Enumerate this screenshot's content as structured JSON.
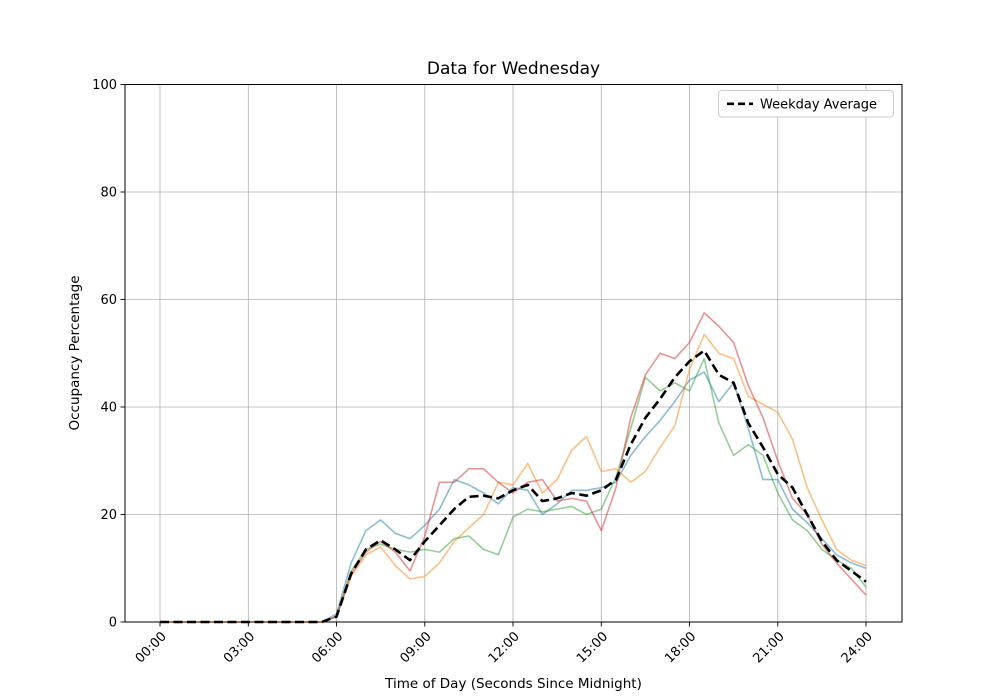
{
  "chart_data": {
    "type": "line",
    "title": "Data for Wednesday",
    "xlabel": "Time of Day (Seconds Since Midnight)",
    "ylabel": "Occupancy Percentage",
    "ylim": [
      0,
      100
    ],
    "grid": true,
    "x_tick_labels": [
      "00:00",
      "03:00",
      "06:00",
      "09:00",
      "12:00",
      "15:00",
      "18:00",
      "21:00",
      "24:00"
    ],
    "x_ticks_hours": [
      0,
      3,
      6,
      9,
      12,
      15,
      18,
      21,
      24
    ],
    "y_ticks": [
      0,
      20,
      40,
      60,
      80,
      100
    ],
    "legend": {
      "label": "Weekday Average",
      "position": "upper-right"
    },
    "colors": {
      "grid": "#b0b0b0",
      "background": "#ffffff",
      "average_line": "#000000"
    },
    "x_hours": [
      0,
      0.5,
      1,
      1.5,
      2,
      2.5,
      3,
      3.5,
      4,
      4.5,
      5,
      5.5,
      6,
      6.5,
      7,
      7.5,
      8,
      8.5,
      9,
      9.5,
      10,
      10.5,
      11,
      11.5,
      12,
      12.5,
      13,
      13.5,
      14,
      14.5,
      15,
      15.5,
      16,
      16.5,
      17,
      17.5,
      18,
      18.5,
      19,
      19.5,
      20,
      20.5,
      21,
      21.5,
      22,
      22.5,
      23,
      23.5,
      24
    ],
    "series": [
      {
        "name": "day-sample-1",
        "color": "#1f77b4",
        "opacity": 0.5,
        "width": 1.6,
        "values": [
          0,
          0,
          0,
          0,
          0,
          0,
          0,
          0,
          0,
          0,
          0,
          0,
          1.5,
          11,
          17,
          19,
          16.5,
          15.5,
          18,
          21,
          26.5,
          25.5,
          24,
          22,
          25,
          24.5,
          20,
          22,
          24.5,
          24.5,
          25,
          26,
          31,
          34.5,
          37.5,
          41,
          45,
          46.5,
          41,
          44.5,
          36,
          26.5,
          26.5,
          21,
          18.5,
          15.5,
          12.5,
          11,
          10
        ]
      },
      {
        "name": "day-sample-2",
        "color": "#ff7f0e",
        "opacity": 0.5,
        "width": 1.6,
        "values": [
          0,
          0,
          0,
          0,
          0,
          0,
          0,
          0,
          0,
          0,
          0,
          0,
          1,
          8.5,
          12.5,
          14,
          10.5,
          8,
          8.5,
          11,
          15,
          17.5,
          20,
          26,
          25.5,
          29.5,
          24,
          26.5,
          32,
          34.5,
          28,
          28.5,
          26,
          28,
          32.5,
          36.5,
          47,
          53.5,
          50,
          49,
          42,
          40.5,
          39,
          34,
          25,
          19,
          13.5,
          11.5,
          10.5
        ]
      },
      {
        "name": "day-sample-3",
        "color": "#2ca02c",
        "opacity": 0.5,
        "width": 1.6,
        "values": [
          0,
          0,
          0,
          0,
          0,
          0,
          0,
          0,
          0,
          0,
          0,
          0,
          1,
          9.5,
          13.5,
          14.5,
          13.5,
          13,
          13.5,
          13,
          15.5,
          16,
          13.5,
          12.5,
          19.5,
          21,
          20.5,
          21,
          21.5,
          20,
          21,
          27,
          36,
          45.5,
          43,
          44.5,
          43,
          49,
          37,
          31,
          33,
          31,
          24,
          19,
          17,
          13.5,
          11.5,
          10,
          6.5
        ]
      },
      {
        "name": "day-sample-4",
        "color": "#d62728",
        "opacity": 0.5,
        "width": 1.6,
        "values": [
          0,
          0,
          0,
          0,
          0,
          0,
          0,
          0,
          0,
          0,
          0,
          0,
          1,
          9,
          13,
          15,
          13,
          9.5,
          16,
          26,
          26,
          28.5,
          28.5,
          26,
          24,
          26,
          26.5,
          22.5,
          23,
          22.5,
          17,
          25,
          38,
          46,
          50,
          49,
          52,
          57.5,
          55,
          52,
          44,
          38,
          30,
          23,
          20,
          14.5,
          11,
          8,
          5
        ]
      },
      {
        "name": "weekday-average",
        "label": "Weekday Average",
        "color": "#000000",
        "opacity": 1,
        "width": 2.6,
        "dash": "9 4.5",
        "values": [
          0,
          0,
          0,
          0,
          0,
          0,
          0,
          0,
          0,
          0,
          0,
          0,
          1,
          9,
          13.5,
          15.2,
          13.5,
          11.5,
          15,
          18,
          21,
          23.3,
          23.5,
          23,
          24.5,
          25.5,
          22.5,
          23,
          24,
          23.5,
          24.5,
          26.5,
          33,
          38,
          41.5,
          45.5,
          48.5,
          50.5,
          46,
          44.5,
          37,
          32.5,
          27.5,
          25,
          20,
          15,
          11.5,
          9.5,
          7.5
        ]
      }
    ]
  }
}
